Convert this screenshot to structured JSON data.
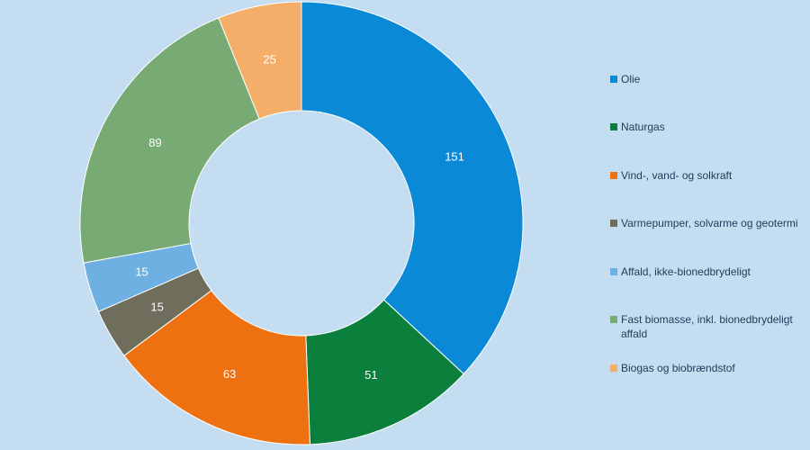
{
  "chart_data": {
    "type": "pie",
    "variant": "donut",
    "categories": [
      "Olie",
      "Naturgas",
      "Vind-, vand- og solkraft",
      "Varmepumper, solvarme og geotermi",
      "Affald, ikke-bionedbrydeligt",
      "Fast biomasse, inkl. bionedbrydeligt affald",
      "Biogas og biobrændstof"
    ],
    "values": [
      151,
      51,
      63,
      15,
      15,
      89,
      25
    ],
    "data_labels": [
      "151",
      "51",
      "63",
      "15",
      "15",
      "89",
      "25"
    ],
    "colors": [
      "#0a8ad6",
      "#0b7f3c",
      "#ed7111",
      "#6f6e5c",
      "#6fb0e3",
      "#77ab73",
      "#f5ad6a"
    ],
    "legend_position": "right",
    "background": "#c5ddf1"
  },
  "legend": {
    "items": [
      {
        "label": "Olie",
        "color": "#0a8ad6"
      },
      {
        "label": "Naturgas",
        "color": "#0b7f3c"
      },
      {
        "label": "Vind-, vand- og solkraft",
        "color": "#ed7111"
      },
      {
        "label": "Varmepumper, solvarme og geotermi",
        "color": "#6f6e5c"
      },
      {
        "label": "Affald, ikke-bionedbrydeligt",
        "color": "#6fb0e3"
      },
      {
        "label": "Fast biomasse, inkl. bionedbrydeligt affald",
        "color": "#77ab73"
      },
      {
        "label": "Biogas og biobrændstof",
        "color": "#f5ad6a"
      }
    ]
  }
}
